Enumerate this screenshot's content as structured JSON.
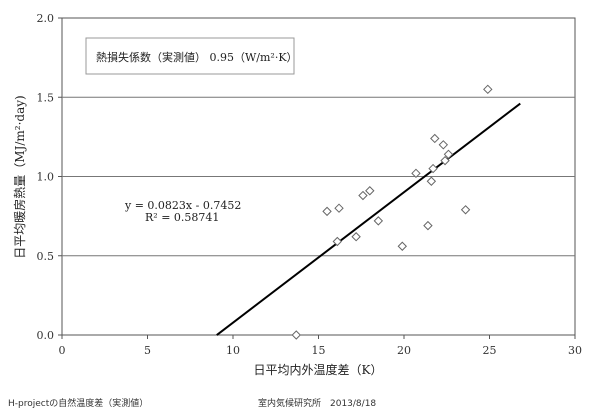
{
  "chart_data": {
    "type": "scatter",
    "xlabel": "日平均内外温度差（K）",
    "ylabel": "日平均暖房熱量（MJ/m²·day)",
    "xlim": [
      0,
      30
    ],
    "ylim": [
      0,
      2.0
    ],
    "xticks": [
      "0",
      "5",
      "10",
      "15",
      "20",
      "25",
      "30"
    ],
    "yticks": [
      "0.0",
      "0.5",
      "1.0",
      "1.5",
      "2.0"
    ],
    "grid": "horizontal",
    "points": [
      [
        24.9,
        1.55
      ],
      [
        21.8,
        1.24
      ],
      [
        22.3,
        1.2
      ],
      [
        22.6,
        1.14
      ],
      [
        22.4,
        1.1
      ],
      [
        21.7,
        1.05
      ],
      [
        20.7,
        1.02
      ],
      [
        21.6,
        0.97
      ],
      [
        18.0,
        0.91
      ],
      [
        17.6,
        0.88
      ],
      [
        16.2,
        0.8
      ],
      [
        15.5,
        0.78
      ],
      [
        23.6,
        0.79
      ],
      [
        18.5,
        0.72
      ],
      [
        21.4,
        0.69
      ],
      [
        17.2,
        0.62
      ],
      [
        16.1,
        0.59
      ],
      [
        19.9,
        0.56
      ],
      [
        13.7,
        0.0
      ]
    ],
    "trendline": {
      "slope": 0.0823,
      "intercept": -0.7452,
      "x_range": [
        9.05,
        26.8
      ],
      "equation": "y = 0.0823x - 0.7452",
      "r2": "R² = 0.58741"
    },
    "annotation": "熱損失係数（実測値）  0.95（W/m²·K）"
  },
  "footer": {
    "left": "H-projectの自然温度差（実測値）",
    "right": "室内気候研究所　2013/8/18"
  }
}
